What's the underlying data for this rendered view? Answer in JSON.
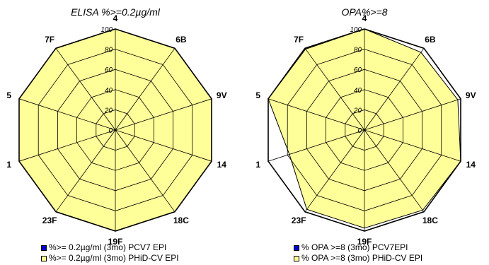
{
  "chart_data": [
    {
      "type": "radar",
      "title": "ELISA %>=0.2µg/ml",
      "categories": [
        "4",
        "6B",
        "9V",
        "14",
        "18C",
        "19F",
        "23F",
        "1",
        "5",
        "7F"
      ],
      "rlim": [
        0,
        100
      ],
      "radial_ticks": [
        "0",
        "20",
        "40",
        "60",
        "80",
        "100"
      ],
      "series": [
        {
          "name": "%>= 0.2µg/ml (3mo) PCV7 EPI",
          "color": "#0000cc",
          "fill": "#ffff99",
          "values": [
            100,
            100,
            100,
            100,
            100,
            100,
            100,
            100,
            100,
            100
          ]
        },
        {
          "name": "%>= 0.2µg/ml (3mo) PHiD-CV EPI",
          "color": "#000000",
          "fill": "none",
          "values": [
            100,
            100,
            100,
            100,
            100,
            100,
            100,
            100,
            100,
            100
          ]
        }
      ]
    },
    {
      "type": "radar",
      "title": "OPA%>=8",
      "categories": [
        "4",
        "6B",
        "9V",
        "14",
        "18C",
        "19F",
        "23F",
        "1",
        "5",
        "7F"
      ],
      "rlim": [
        0,
        100
      ],
      "radial_ticks": [
        "0",
        "20",
        "40",
        "60",
        "80",
        "100"
      ],
      "series": [
        {
          "name": "% OPA >=8 (3mo) PCV7EPI",
          "color": "#0000cc",
          "fill": "#ffff99",
          "values": [
            100,
            95,
            97,
            100,
            98,
            97,
            97,
            78,
            100,
            99
          ]
        },
        {
          "name": "% OPA >=8 (3mo) PHiD-CV EPI",
          "color": "#000000",
          "fill": "none",
          "values": [
            100,
            100,
            100,
            100,
            100,
            100,
            100,
            100,
            100,
            100
          ]
        }
      ]
    }
  ],
  "colors": {
    "fill": "#ffff99",
    "grid": "#000000",
    "pcv7_swatch": "#0000cc",
    "phid_swatch": "#ffff99"
  }
}
